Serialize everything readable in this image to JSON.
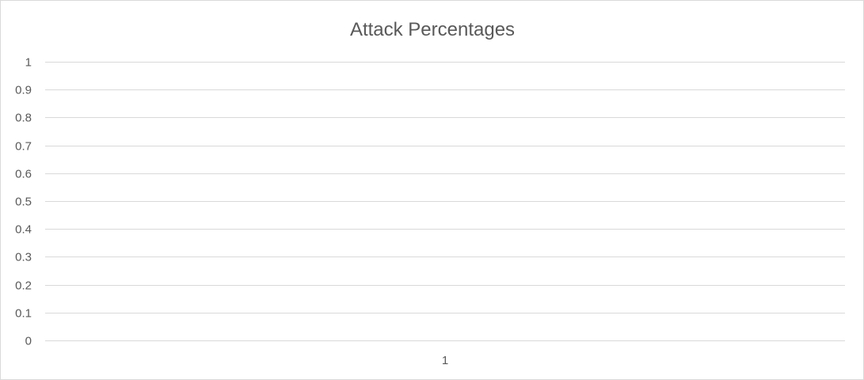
{
  "chart_data": {
    "type": "bar",
    "title": "Attack Percentages",
    "categories": [
      "1"
    ],
    "series": [
      {
        "values": [
          0
        ]
      }
    ],
    "xlabel": "",
    "ylabel": "",
    "ylim": [
      0,
      1
    ],
    "yticks": [
      "0",
      "0.1",
      "0.2",
      "0.3",
      "0.4",
      "0.5",
      "0.6",
      "0.7",
      "0.8",
      "0.9",
      "1"
    ],
    "grid": true,
    "legend": "none"
  },
  "colors": {
    "gridline": "#d9d9d9",
    "text": "#595959",
    "border": "#d9d9d9"
  }
}
